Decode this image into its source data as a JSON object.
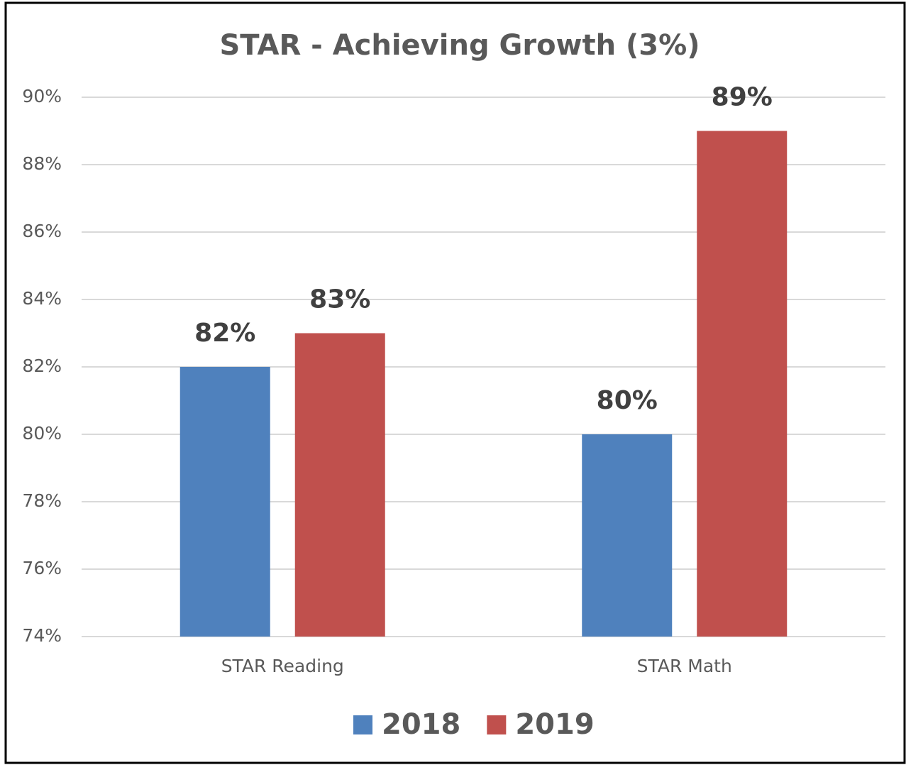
{
  "chart_data": {
    "type": "bar",
    "title": "STAR - Achieving Growth (3%)",
    "categories": [
      "STAR Reading",
      "STAR Math"
    ],
    "series": [
      {
        "name": "2018",
        "color": "#4f81bd",
        "values": [
          82,
          80
        ],
        "value_labels": [
          "82%",
          "80%"
        ]
      },
      {
        "name": "2019",
        "color": "#c0504d",
        "values": [
          83,
          89
        ],
        "value_labels": [
          "83%",
          "89%"
        ]
      }
    ],
    "ylim": [
      74,
      90
    ],
    "yticks": [
      {
        "value": 74,
        "label": "74%"
      },
      {
        "value": 76,
        "label": "76%"
      },
      {
        "value": 78,
        "label": "78%"
      },
      {
        "value": 80,
        "label": "80%"
      },
      {
        "value": 82,
        "label": "82%"
      },
      {
        "value": 84,
        "label": "84%"
      },
      {
        "value": 86,
        "label": "86%"
      },
      {
        "value": 88,
        "label": "88%"
      },
      {
        "value": 90,
        "label": "90%"
      }
    ],
    "grid": true,
    "legend": "bottom"
  }
}
